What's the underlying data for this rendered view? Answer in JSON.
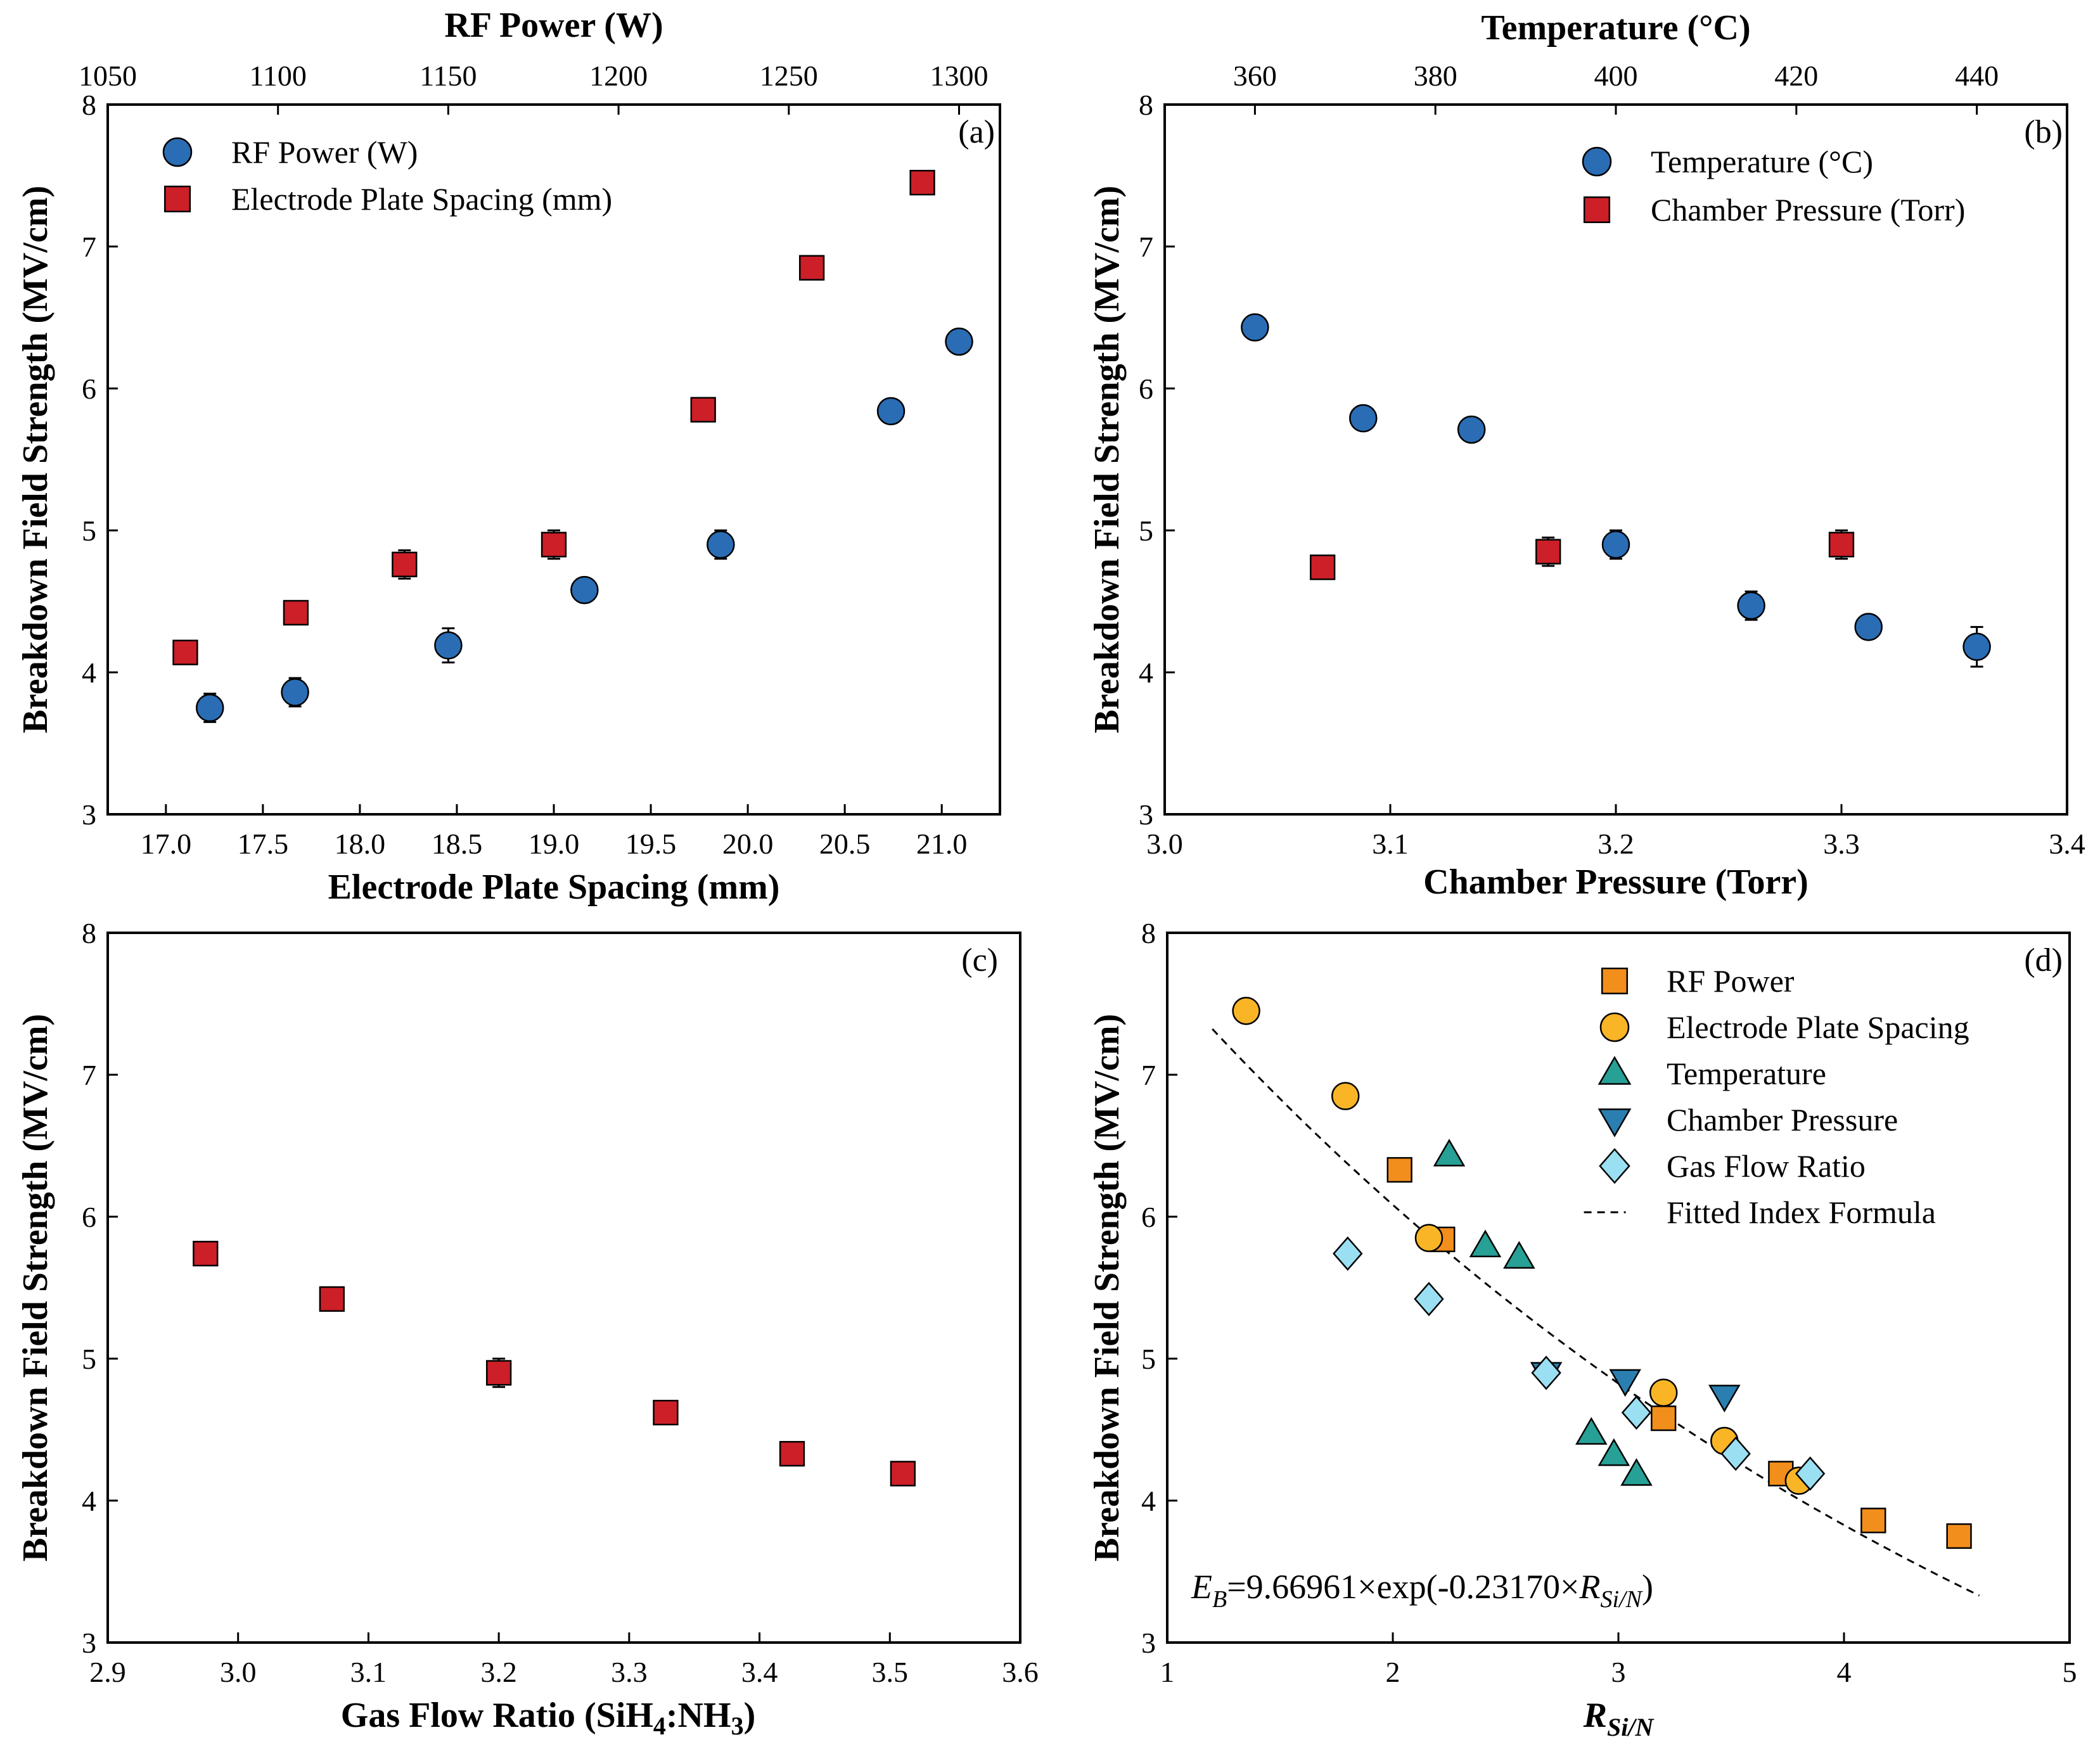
{
  "chart_data": [
    {
      "type": "scatter",
      "panel_label": "(a)",
      "ylabel": "Breakdown Field Strength (MV/cm)",
      "xlabel": "Electrode Plate Spacing (mm)",
      "x2label": "RF Power (W)",
      "xlim": [
        16.7,
        21.3
      ],
      "x2lim": [
        1050,
        1312
      ],
      "ylim": [
        3,
        8
      ],
      "xticks": [
        "17.0",
        "17.5",
        "18.0",
        "18.5",
        "19.0",
        "19.5",
        "20.0",
        "20.5",
        "21.0"
      ],
      "x2ticks": [
        "1050",
        "1100",
        "1150",
        "1200",
        "1250",
        "1300"
      ],
      "yticks": [
        "3",
        "4",
        "5",
        "6",
        "7",
        "8"
      ],
      "legend_position": "top-left",
      "series": [
        {
          "name": "RF Power (W)",
          "axis": "top",
          "marker": "circle",
          "color": "#2a6db5",
          "x": [
            1080,
            1105,
            1150,
            1190,
            1230,
            1280,
            1300
          ],
          "y": [
            3.75,
            3.86,
            4.19,
            4.58,
            4.9,
            5.84,
            6.33
          ],
          "err": [
            0.1,
            0.1,
            0.12,
            0.08,
            0.1,
            0.05,
            0.05
          ]
        },
        {
          "name": "Electrode Plate Spacing (mm)",
          "axis": "bottom",
          "marker": "square",
          "color": "#cc1f27",
          "x": [
            17.1,
            17.67,
            18.23,
            19.0,
            19.77,
            20.33,
            20.9
          ],
          "y": [
            4.14,
            4.42,
            4.76,
            4.9,
            5.85,
            6.85,
            7.45
          ],
          "err": [
            0.04,
            0.05,
            0.1,
            0.1,
            0.04,
            0.04,
            0.04
          ]
        }
      ]
    },
    {
      "type": "scatter",
      "panel_label": "(b)",
      "ylabel": "Breakdown Field Strength (MV/cm)",
      "xlabel": "Chamber Pressure (Torr)",
      "x2label": "Temperature (°C)",
      "xlim": [
        3.0,
        3.4
      ],
      "x2lim": [
        350,
        450
      ],
      "ylim": [
        3,
        8
      ],
      "xticks": [
        "3.0",
        "3.1",
        "3.2",
        "3.3",
        "3.4"
      ],
      "x2ticks": [
        "360",
        "380",
        "400",
        "420",
        "440"
      ],
      "yticks": [
        "3",
        "4",
        "5",
        "6",
        "7",
        "8"
      ],
      "legend_position": "top-right",
      "series": [
        {
          "name": "Temperature (°C)",
          "axis": "top",
          "marker": "circle",
          "color": "#2a6db5",
          "x": [
            360,
            372,
            384,
            400,
            415,
            428,
            440
          ],
          "y": [
            6.43,
            5.79,
            5.71,
            4.9,
            4.47,
            4.32,
            4.18
          ],
          "err": [
            0.05,
            0.05,
            0.08,
            0.1,
            0.1,
            0.05,
            0.14
          ]
        },
        {
          "name": "Chamber Pressure (Torr)",
          "axis": "bottom",
          "marker": "square",
          "color": "#cc1f27",
          "x": [
            3.07,
            3.17,
            3.3
          ],
          "y": [
            4.74,
            4.85,
            4.9
          ],
          "err": [
            0.04,
            0.1,
            0.1
          ]
        }
      ]
    },
    {
      "type": "scatter",
      "panel_label": "(c)",
      "ylabel": "Breakdown Field Strength (MV/cm)",
      "xlabel_main": "Gas Flow Ratio (SiH",
      "xlabel_sub1": "4",
      "xlabel_mid": ":NH",
      "xlabel_sub2": "3",
      "xlabel_end": ")",
      "xlim": [
        2.9,
        3.6
      ],
      "ylim": [
        3,
        8
      ],
      "xticks": [
        "2.9",
        "3.0",
        "3.1",
        "3.2",
        "3.3",
        "3.4",
        "3.5",
        "3.6"
      ],
      "yticks": [
        "3",
        "4",
        "5",
        "6",
        "7",
        "8"
      ],
      "series": [
        {
          "name": "Gas Flow Ratio",
          "axis": "bottom",
          "marker": "square",
          "color": "#cc1f27",
          "x": [
            2.975,
            3.072,
            3.2,
            3.328,
            3.425,
            3.51
          ],
          "y": [
            5.74,
            5.42,
            4.9,
            4.62,
            4.33,
            4.19
          ],
          "err": [
            0.03,
            0.08,
            0.1,
            0.05,
            0.07,
            0.05
          ]
        }
      ]
    },
    {
      "type": "scatter",
      "panel_label": "(d)",
      "ylabel": "Breakdown Field Strength (MV/cm)",
      "xlabel_main": "R",
      "xlabel_sub": "Si/N",
      "xlim": [
        1,
        5
      ],
      "ylim": [
        3,
        8
      ],
      "xticks": [
        "1",
        "2",
        "3",
        "4",
        "5"
      ],
      "yticks": [
        "3",
        "4",
        "5",
        "6",
        "7",
        "8"
      ],
      "legend_position": "top-right",
      "formula": {
        "lhs_main": "E",
        "lhs_sub": "B",
        "rhs": "=9.66961×exp(-0.23170×",
        "r_main": "R",
        "r_sub": "Si/N",
        "close": ")",
        "a": 9.66961,
        "b": -0.2317,
        "x_range": [
          1.2,
          4.6
        ]
      },
      "series": [
        {
          "name": "RF Power",
          "marker": "square",
          "color": "#f28e1c",
          "x": [
            2.03,
            2.22,
            3.2,
            3.72,
            4.13,
            4.51
          ],
          "y": [
            6.33,
            5.84,
            4.58,
            4.19,
            3.86,
            3.75
          ]
        },
        {
          "name": "Electrode Plate Spacing",
          "marker": "circle",
          "color": "#f9b526",
          "x": [
            1.35,
            1.79,
            2.16,
            3.2,
            3.47,
            3.8
          ],
          "y": [
            7.45,
            6.85,
            5.85,
            4.76,
            4.42,
            4.14
          ]
        },
        {
          "name": "Temperature",
          "marker": "triangle-up",
          "color": "#27a096",
          "x": [
            2.25,
            2.41,
            2.56,
            2.88,
            2.98,
            3.08
          ],
          "y": [
            6.43,
            5.79,
            5.71,
            4.47,
            4.32,
            4.18
          ]
        },
        {
          "name": "Chamber Pressure",
          "marker": "triangle-down",
          "color": "#2a7fb0",
          "x": [
            2.68,
            3.03,
            3.47
          ],
          "y": [
            4.9,
            4.85,
            4.74
          ]
        },
        {
          "name": "Gas Flow Ratio",
          "marker": "diamond",
          "color": "#9be0f2",
          "x": [
            1.8,
            2.16,
            2.68,
            3.08,
            3.52,
            3.85
          ],
          "y": [
            5.74,
            5.42,
            4.9,
            4.62,
            4.33,
            4.19
          ]
        },
        {
          "name": "Fitted Index Formula",
          "marker": "dashed-line",
          "color": "#000000"
        }
      ]
    }
  ]
}
